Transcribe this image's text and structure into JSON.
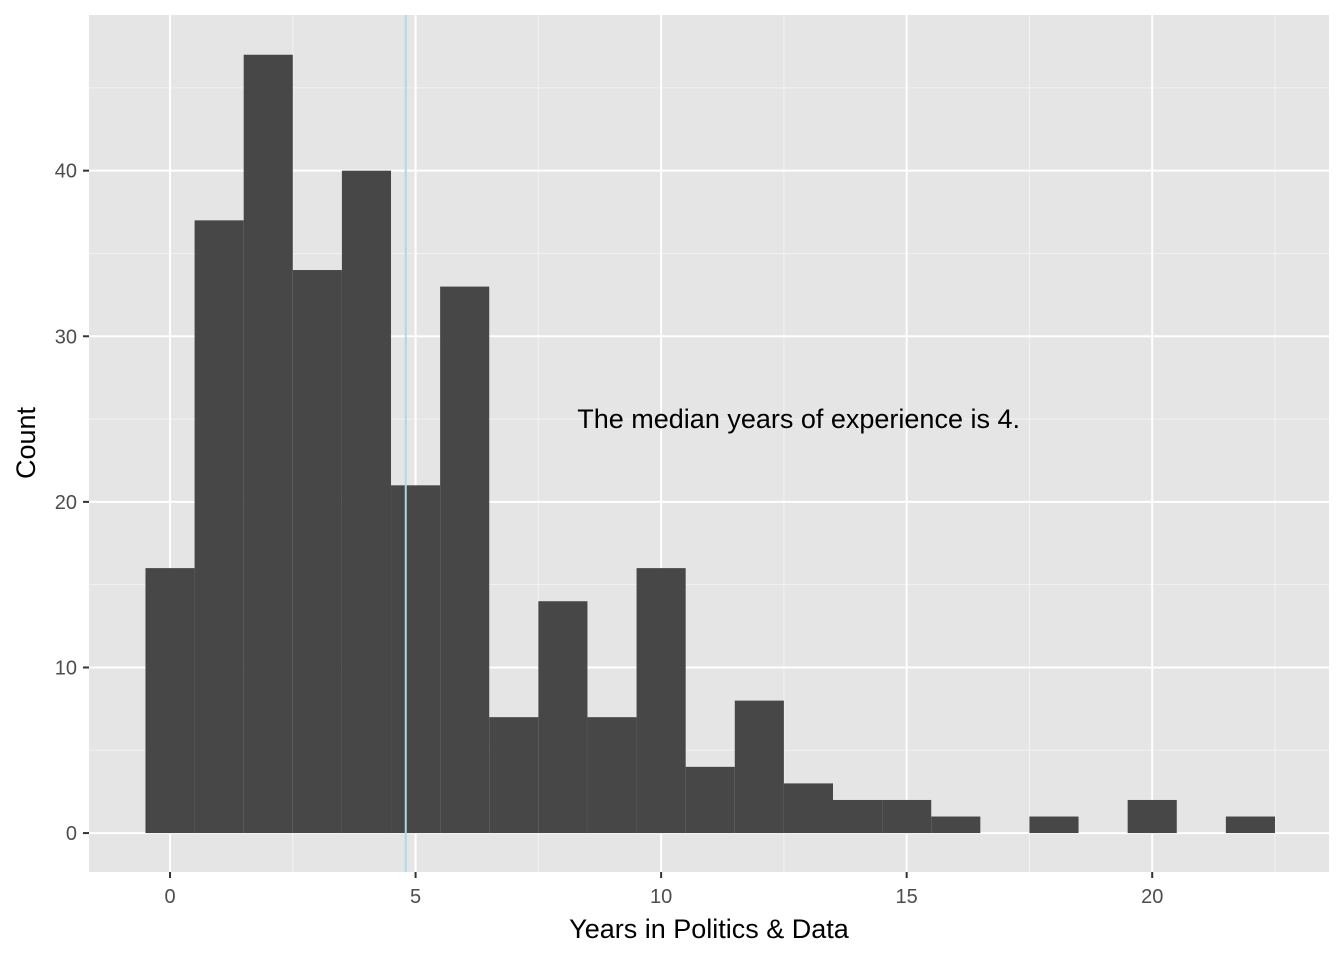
{
  "chart_data": {
    "type": "bar",
    "xlabel": "Years in Politics & Data",
    "ylabel": "Count",
    "bin_width": 1,
    "x": [
      0,
      1,
      2,
      3,
      4,
      5,
      6,
      7,
      8,
      9,
      10,
      11,
      12,
      13,
      14,
      15,
      16,
      17,
      18,
      19,
      20,
      21,
      22
    ],
    "values": [
      16,
      37,
      47,
      34,
      40,
      21,
      33,
      7,
      14,
      7,
      16,
      4,
      8,
      3,
      2,
      2,
      1,
      0,
      1,
      0,
      2,
      0,
      1
    ],
    "xlim": [
      -1.65,
      23.6
    ],
    "ylim": [
      -2.35,
      49.4
    ],
    "x_ticks": [
      0,
      5,
      10,
      15,
      20
    ],
    "x_tick_labels": [
      "0",
      "5",
      "10",
      "15",
      "20"
    ],
    "y_ticks": [
      0,
      10,
      20,
      30,
      40
    ],
    "y_tick_labels": [
      "0",
      "10",
      "20",
      "30",
      "40"
    ],
    "reference_line": {
      "x": 4.8,
      "color": "#add8e6"
    },
    "annotation": {
      "text": "The median years of experience is 4.",
      "x": 12.8,
      "y": 25
    },
    "grid": true,
    "legend": "none",
    "colors": {
      "panel": "#e5e5e5",
      "grid_major": "#ffffff",
      "bar": "#474747",
      "tick_text": "#4d4d4d"
    }
  }
}
